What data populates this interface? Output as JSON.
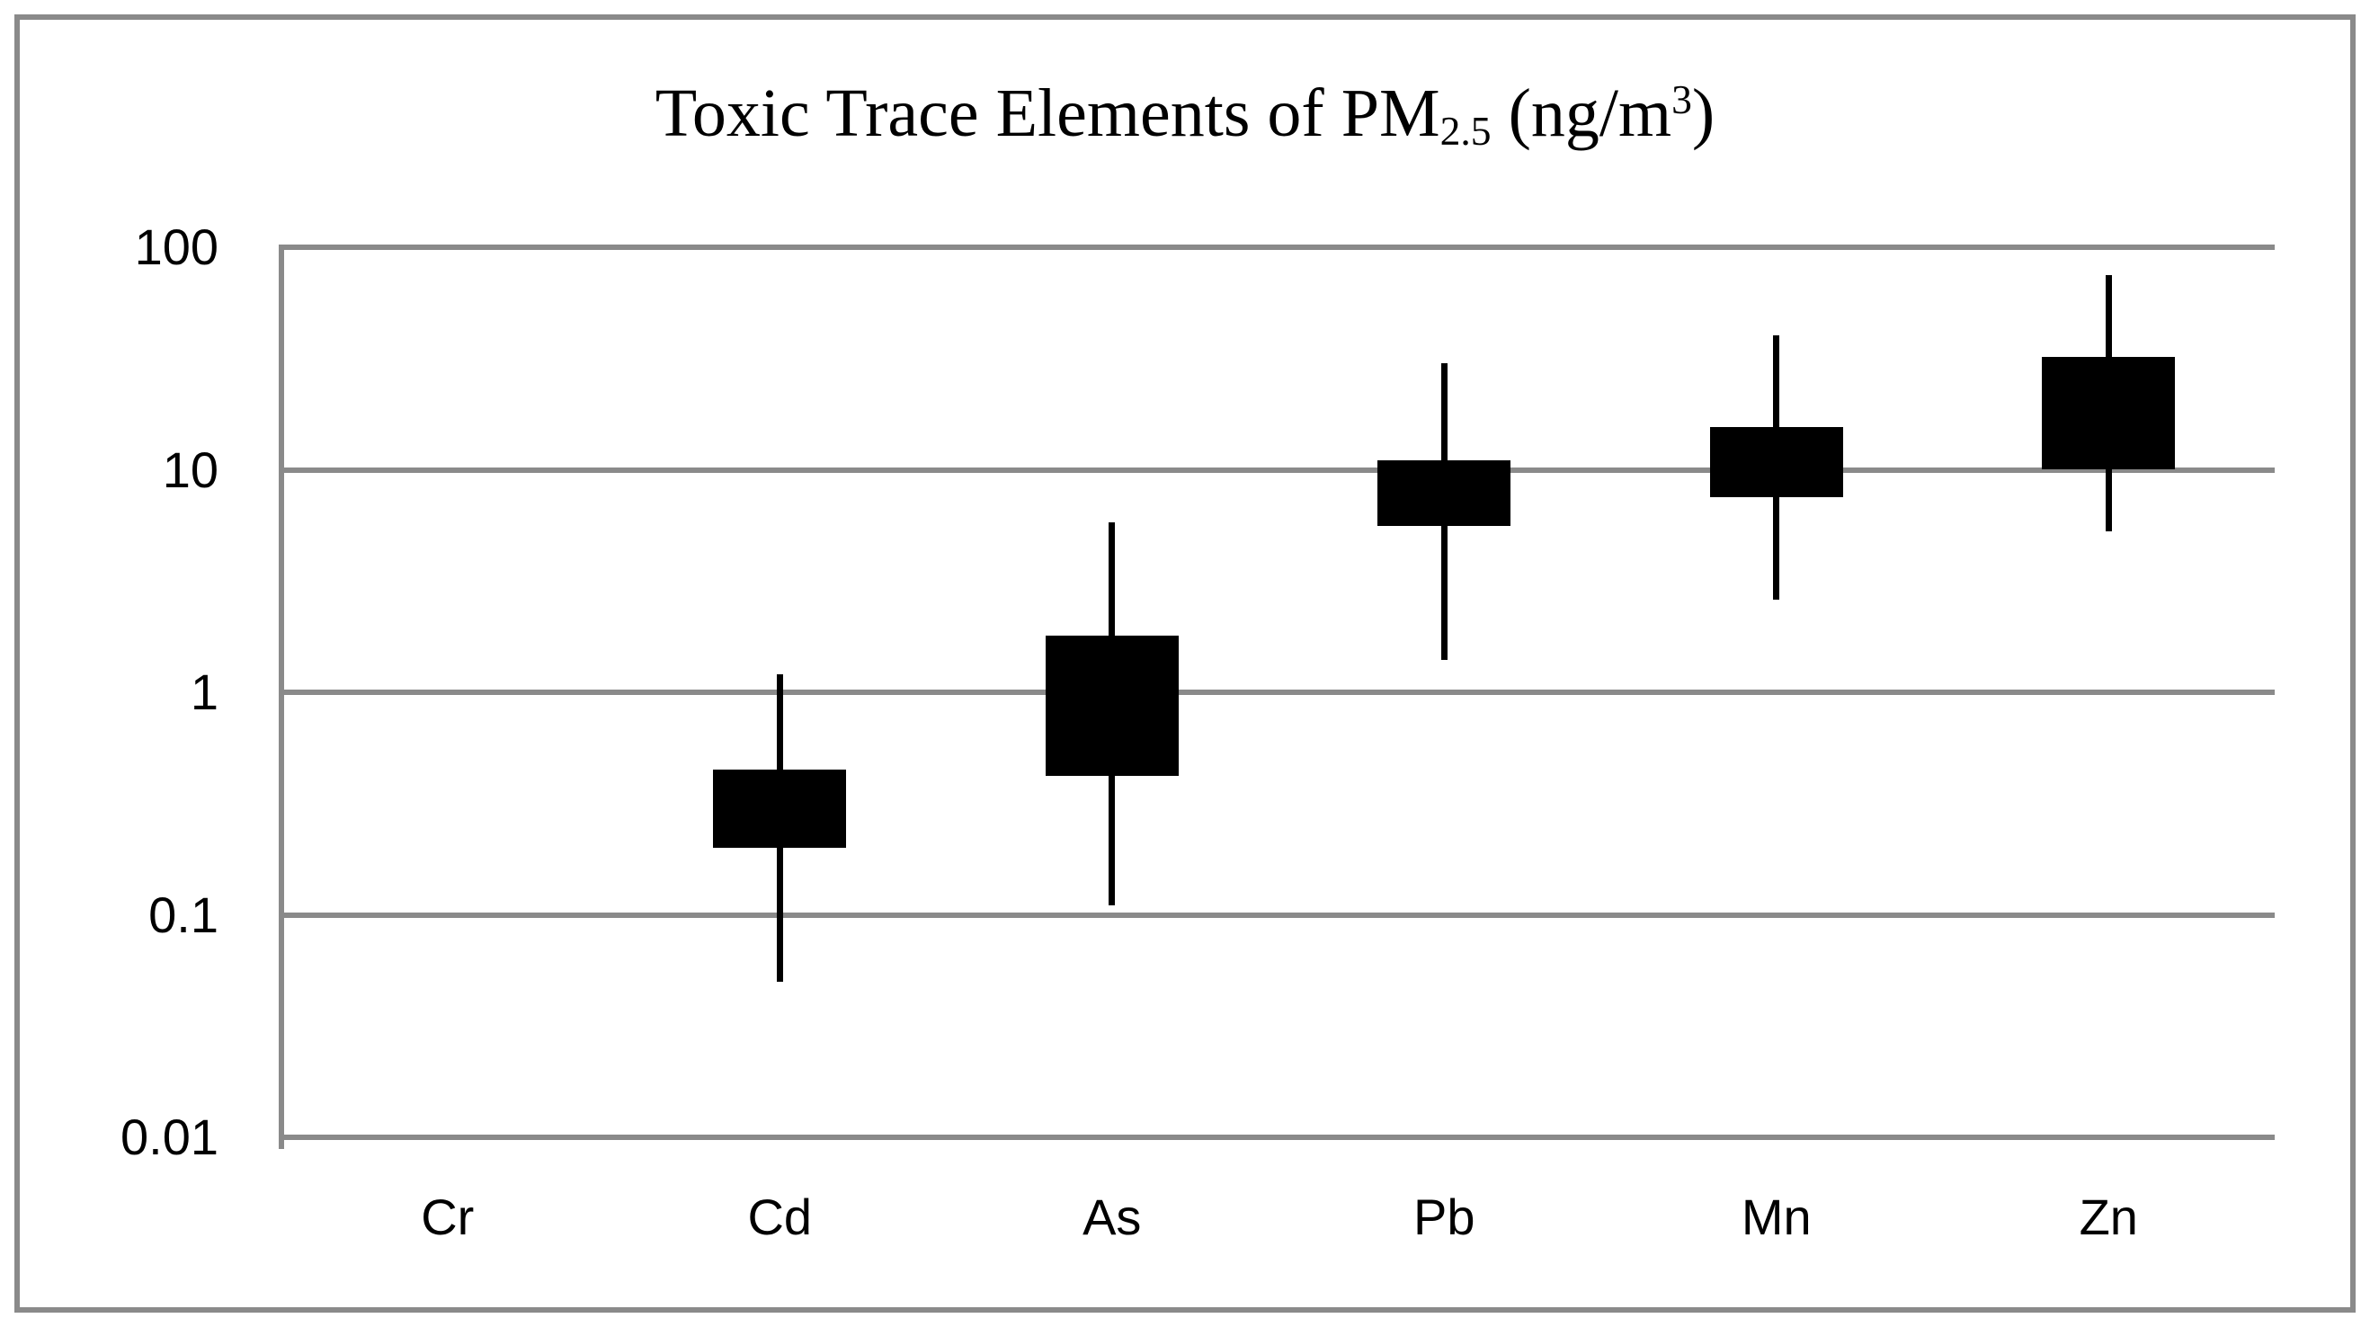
{
  "chart_data": {
    "type": "boxplot",
    "title": "Toxic Trace Elements of PM2.5 (ng/m3)",
    "title_parts": {
      "prefix": "Toxic Trace Elements of PM",
      "subscript": "2.5",
      "mid": " (ng/m",
      "superscript": "3",
      "suffix": ")"
    },
    "y_scale": "log10",
    "y_range": [
      0.01,
      100
    ],
    "y_ticks": [
      100,
      10,
      1,
      0.1,
      0.01
    ],
    "y_tick_labels": [
      "100",
      "10",
      "1",
      "0.1",
      "0.01"
    ],
    "grid": "horizontal-decade-gridlines",
    "legend": "none",
    "categories": [
      "Cr",
      "Cd",
      "As",
      "Pb",
      "Mn",
      "Zn"
    ],
    "series": [
      {
        "element": "Cr",
        "whisker_low": null,
        "box_low": null,
        "box_high": null,
        "whisker_high": null
      },
      {
        "element": "Cd",
        "whisker_low": 0.05,
        "box_low": 0.2,
        "box_high": 0.45,
        "whisker_high": 1.2
      },
      {
        "element": "As",
        "whisker_low": 0.11,
        "box_low": 0.42,
        "box_high": 1.8,
        "whisker_high": 5.8
      },
      {
        "element": "Pb",
        "whisker_low": 1.4,
        "box_low": 5.6,
        "box_high": 11,
        "whisker_high": 30
      },
      {
        "element": "Mn",
        "whisker_low": 2.6,
        "box_low": 7.5,
        "box_high": 15.5,
        "whisker_high": 40
      },
      {
        "element": "Zn",
        "whisker_low": 5.3,
        "box_low": 10,
        "box_high": 32,
        "whisker_high": 75
      }
    ],
    "colors": {
      "box": "#000000",
      "whisker": "#000000",
      "gridline": "#8a8a8a",
      "axis_line": "#8a8a8a",
      "frame_border": "#8a8a8a",
      "text": "#000000",
      "background": "#ffffff"
    }
  }
}
